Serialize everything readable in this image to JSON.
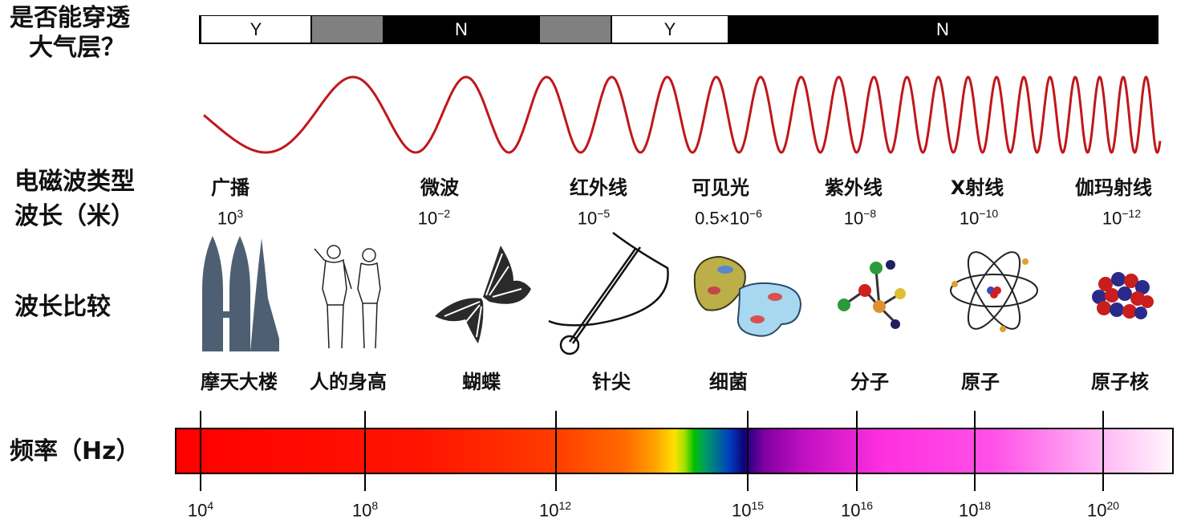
{
  "row_labels": {
    "atmosphere": [
      "是否能穿透",
      "大气层？"
    ],
    "type": "电磁波类型",
    "wavelength": "波长（米）",
    "compare": "波长比较",
    "frequency": "频率（Hz）"
  },
  "atmosphere_segments": [
    {
      "label": "Y",
      "fill": "#ffffff"
    },
    {
      "label": "",
      "fill": "#808080"
    },
    {
      "label": "N",
      "fill": "#000000"
    },
    {
      "label": "",
      "fill": "#808080"
    },
    {
      "label": "Y",
      "fill": "#ffffff"
    },
    {
      "label": "N",
      "fill": "#000000"
    }
  ],
  "wave_color": "#c0171b",
  "columns": [
    {
      "type": "广播",
      "wl_base": "10",
      "wl_exp": "3",
      "object": "摩天大楼",
      "icon": "skyscraper-icon"
    },
    {
      "type": "",
      "wl_base": "",
      "wl_exp": "",
      "object": "人的身高",
      "icon": "human-icon"
    },
    {
      "type": "微波",
      "wl_base": "10",
      "wl_exp": "−2",
      "object": "蝴蝶",
      "icon": "butterfly-icon"
    },
    {
      "type": "红外线",
      "wl_base": "10",
      "wl_exp": "−5",
      "object": "针尖",
      "icon": "needle-icon"
    },
    {
      "type": "可见光",
      "wl_base": "0.5×10",
      "wl_exp": "−6",
      "object": "细菌",
      "icon": "bacteria-icon"
    },
    {
      "type": "紫外线",
      "wl_base": "10",
      "wl_exp": "−8",
      "object": "分子",
      "icon": "molecule-icon"
    },
    {
      "type": "X射线",
      "wl_base": "10",
      "wl_exp": "−10",
      "object": "原子",
      "icon": "atom-icon"
    },
    {
      "type": "伽玛射线",
      "wl_base": "10",
      "wl_exp": "−12",
      "object": "原子核",
      "icon": "nucleus-icon"
    }
  ],
  "frequency_ticks": [
    {
      "base": "10",
      "exp": "4"
    },
    {
      "base": "10",
      "exp": "8"
    },
    {
      "base": "10",
      "exp": "12"
    },
    {
      "base": "10",
      "exp": "15"
    },
    {
      "base": "10",
      "exp": "16"
    },
    {
      "base": "10",
      "exp": "18"
    },
    {
      "base": "10",
      "exp": "20"
    }
  ]
}
